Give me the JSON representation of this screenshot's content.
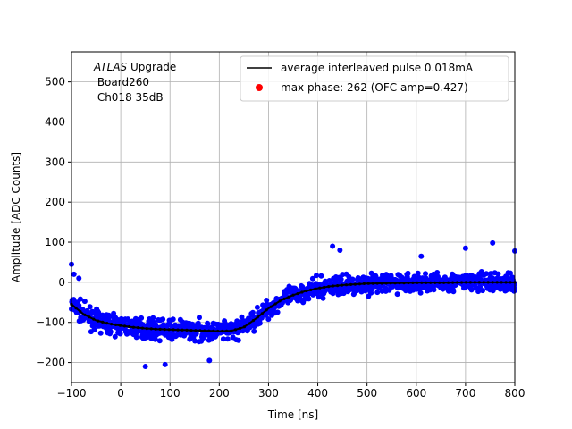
{
  "chart_data": {
    "type": "scatter",
    "xlabel": "Time [ns]",
    "ylabel": "Amplitude [ADC Counts]",
    "xlim": [
      -100,
      800
    ],
    "ylim": [
      -250,
      575
    ],
    "xticks": [
      -100,
      0,
      100,
      200,
      300,
      400,
      500,
      600,
      700,
      800
    ],
    "yticks": [
      -200,
      -100,
      0,
      100,
      200,
      300,
      400,
      500
    ],
    "grid": true,
    "annotation": {
      "line1_italic": "ATLAS",
      "line1_rest": " Upgrade",
      "line2": " Board260",
      "line3": " Ch018 35dB"
    },
    "legend": {
      "placement": "top-right",
      "entries": [
        {
          "label": "average interleaved pulse 0.018mA",
          "kind": "line",
          "color": "#000000"
        },
        {
          "label": "max phase: 262 (OFC amp=0.427)",
          "kind": "marker",
          "color": "#ff0000"
        }
      ]
    },
    "series": [
      {
        "name": "average interleaved pulse 0.018mA",
        "kind": "line",
        "color": "#000000",
        "x": [
          -100,
          -75,
          -50,
          -25,
          0,
          25,
          50,
          75,
          100,
          125,
          150,
          175,
          200,
          225,
          250,
          275,
          300,
          325,
          350,
          375,
          400,
          425,
          450,
          475,
          500,
          550,
          600,
          650,
          700,
          750,
          800
        ],
        "y": [
          -55,
          -80,
          -95,
          -103,
          -108,
          -112,
          -115,
          -117,
          -118,
          -119,
          -120,
          -121,
          -122,
          -121,
          -112,
          -90,
          -65,
          -45,
          -32,
          -22,
          -15,
          -10,
          -7,
          -5,
          -3,
          -2,
          -1,
          -1,
          0,
          0,
          0
        ]
      },
      {
        "name": "samples",
        "kind": "scatter",
        "color": "#0000ff",
        "band_y_spread": 40,
        "outliers": [
          {
            "x": -100,
            "y": 45
          },
          {
            "x": -95,
            "y": 20
          },
          {
            "x": -85,
            "y": 10
          },
          {
            "x": 50,
            "y": -210
          },
          {
            "x": 90,
            "y": -205
          },
          {
            "x": 180,
            "y": -195
          },
          {
            "x": 430,
            "y": 90
          },
          {
            "x": 445,
            "y": 80
          },
          {
            "x": 755,
            "y": 98
          },
          {
            "x": 700,
            "y": 85
          },
          {
            "x": 800,
            "y": 78
          },
          {
            "x": 610,
            "y": 65
          }
        ]
      }
    ]
  }
}
